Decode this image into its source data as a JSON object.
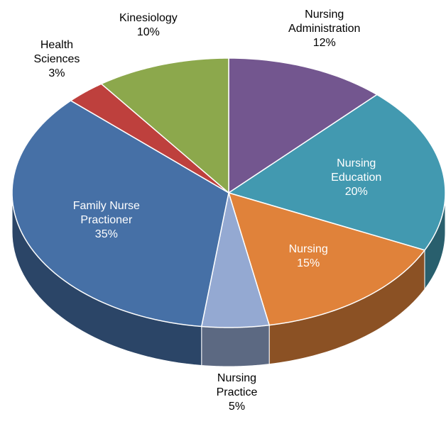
{
  "chart_data": {
    "type": "pie",
    "categories": [
      "Nursing Administration",
      "Nursing Education",
      "Nursing",
      "Nursing Practice",
      "Family Nurse Practioner",
      "Health Sciences",
      "Kinesiology"
    ],
    "values": [
      12,
      20,
      15,
      5,
      35,
      3,
      10
    ],
    "value_labels": [
      "12%",
      "20%",
      "15%",
      "5%",
      "35%",
      "3%",
      "10%"
    ],
    "colors": [
      "#73568f",
      "#4299b0",
      "#e0823a",
      "#94a9d2",
      "#4670a6",
      "#be403d",
      "#8ca84c"
    ]
  }
}
